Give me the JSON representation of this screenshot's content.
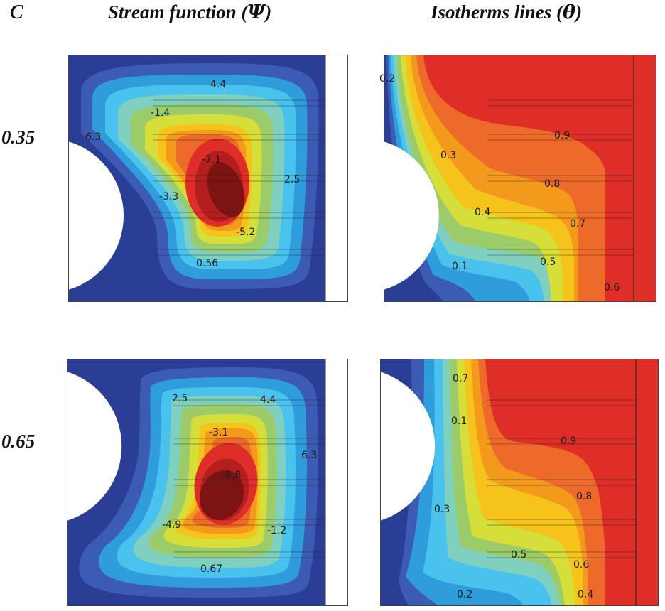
{
  "panel_letter": "C",
  "headers": {
    "stream_function": {
      "text": "Stream function (",
      "symbol": "Ψ",
      "close": ")"
    },
    "isotherms": {
      "text": "Isotherms lines (",
      "symbol": "θ",
      "close": ")"
    }
  },
  "rows": [
    {
      "label": "0.35",
      "stream_labels": [
        "4.4",
        "-1.4",
        "6.3",
        "-7.1",
        "2.5",
        "-3.3",
        "-5.2",
        "0.56"
      ],
      "isotherm_labels": [
        "0.2",
        "0.9",
        "0.3",
        "0.8",
        "0.4",
        "0.7",
        "0.5",
        "0.1",
        "0.6"
      ]
    },
    {
      "label": "0.65",
      "stream_labels": [
        "2.5",
        "4.4",
        "-3.1",
        "6.3",
        "-6.8",
        "-4.9",
        "-1.2",
        "0.67"
      ],
      "isotherm_labels": [
        "0.7",
        "0.1",
        "0.9",
        "0.8",
        "0.3",
        "0.5",
        "0.6",
        "0.2",
        "0.4"
      ]
    }
  ],
  "colormap": [
    "#2b3e96",
    "#3b5bb5",
    "#2f9ddb",
    "#49c3ee",
    "#7fd0bf",
    "#9ccc6a",
    "#d6de3a",
    "#f6c21c",
    "#f39a1d",
    "#ee6a2a",
    "#df2d27",
    "#b51e1e",
    "#7c1414"
  ]
}
